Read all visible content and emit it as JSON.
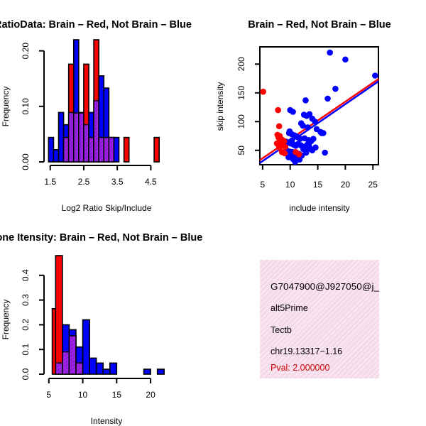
{
  "colors": {
    "brain": "#ff0000",
    "not_brain": "#0000ff",
    "overlap": "#a020f0",
    "info_bg": "#f6d8ea",
    "pval": "#cc0000"
  },
  "chart_data": [
    {
      "id": "ratio-hist",
      "type": "bar",
      "subtype": "overlaid-histogram",
      "title": "RatioData: Brain – Red, Not Brain – Blue",
      "xlabel": "Log2 Ratio Skip/Include",
      "ylabel": "Frequency",
      "xlim": [
        1.4,
        5.0
      ],
      "ylim": [
        0,
        0.22
      ],
      "xticks": [
        1.5,
        2.5,
        3.5,
        4.5
      ],
      "xtick_labels": [
        "1.5",
        "2.5",
        "3.5",
        "4.5"
      ],
      "yticks": [
        0.0,
        0.1,
        0.2
      ],
      "ytick_labels": [
        "0.00",
        "0.10",
        "0.20"
      ],
      "bin_edges": [
        1.45,
        1.6,
        1.75,
        1.9,
        2.05,
        2.2,
        2.35,
        2.5,
        2.65,
        2.8,
        2.95,
        3.1,
        3.25,
        3.4,
        3.55,
        3.7,
        3.85,
        4.0,
        4.15,
        4.3,
        4.45,
        4.6,
        4.75,
        4.9
      ],
      "series": [
        {
          "name": "Not Brain",
          "color": "blue",
          "values": [
            0.044,
            0.022,
            0.089,
            0.067,
            0.089,
            0.22,
            0.089,
            0.067,
            0.089,
            0.11,
            0.155,
            0.133,
            0.044,
            0.044,
            0,
            0,
            0,
            0,
            0,
            0,
            0,
            0,
            0
          ]
        },
        {
          "name": "Brain",
          "color": "red",
          "values": [
            0,
            0,
            0,
            0.044,
            0.176,
            0.088,
            0.088,
            0.176,
            0.044,
            0.22,
            0.044,
            0.044,
            0.044,
            0,
            0,
            0.044,
            0,
            0,
            0,
            0,
            0,
            0.044,
            0
          ]
        }
      ]
    },
    {
      "id": "intensity-scatter",
      "type": "scatter",
      "title": "Brain – Red, Not Brain – Blue",
      "xlabel": "include intensity",
      "ylabel": "skip intensity",
      "xlim": [
        4.5,
        26
      ],
      "ylim": [
        25,
        230
      ],
      "xticks": [
        5,
        10,
        15,
        20,
        25
      ],
      "xtick_labels": [
        "5",
        "10",
        "15",
        "20",
        "25"
      ],
      "yticks": [
        50,
        100,
        150,
        200
      ],
      "ytick_labels": [
        "50",
        "100",
        "150",
        "200"
      ],
      "series": [
        {
          "name": "Not Brain",
          "color": "blue",
          "x": [
            17.2,
            20.0,
            25.4,
            18.2,
            16.8,
            12.8,
            10.0,
            10.5,
            12.5,
            13.0,
            13.5,
            14.0,
            14.5,
            12.0,
            12.3,
            13.2,
            14.8,
            16.0,
            15.5,
            15.7,
            9.8,
            10.3,
            10.8,
            11.2,
            11.5,
            11.8,
            12.6,
            13.3,
            13.8,
            14.2,
            9.3,
            9.6,
            10.1,
            10.6,
            11.0,
            11.4,
            11.9,
            12.2,
            12.7,
            13.1,
            13.6,
            14.0,
            14.6,
            16.3,
            9.4,
            9.9,
            10.4,
            11.1,
            11.6,
            10.2,
            10.7,
            11.3,
            12.1,
            12.9,
            9.7,
            10.5,
            13.4,
            10.9,
            12.4,
            11.7,
            9.9,
            10.3
          ],
          "y": [
            220,
            208,
            180,
            157,
            140,
            137,
            120,
            117,
            112,
            110,
            113,
            105,
            100,
            97,
            93,
            90,
            87,
            80,
            82,
            80,
            80,
            78,
            76,
            74,
            72,
            70,
            71,
            68,
            66,
            70,
            65,
            63,
            62,
            60,
            58,
            61,
            59,
            57,
            55,
            60,
            53,
            50,
            55,
            46,
            50,
            48,
            47,
            45,
            44,
            42,
            43,
            40,
            41,
            46,
            38,
            35,
            58,
            30,
            52,
            34,
            83,
            67
          ]
        },
        {
          "name": "Brain",
          "color": "red",
          "x": [
            5.1,
            7.8,
            8.0,
            7.7,
            8.1,
            7.9,
            8.3,
            8.6,
            8.9,
            8.2,
            7.6,
            8.4,
            8.7,
            9.1,
            8.0,
            8.5,
            9.0,
            11.0,
            11.6
          ],
          "y": [
            152,
            120,
            92,
            77,
            75,
            72,
            70,
            68,
            66,
            64,
            62,
            60,
            58,
            56,
            55,
            47,
            45,
            47,
            43
          ]
        }
      ],
      "fit_lines": [
        {
          "color": "red",
          "x": [
            4.5,
            26
          ],
          "y": [
            33,
            174
          ]
        },
        {
          "color": "blue",
          "x": [
            4.5,
            26
          ],
          "y": [
            28,
            170
          ]
        }
      ]
    },
    {
      "id": "intensity-hist",
      "type": "bar",
      "subtype": "overlaid-histogram",
      "title": "Exone Itensity: Brain – Red, Not Brain – Blue",
      "xlabel": "Intensity",
      "ylabel": "Frequency",
      "xlim": [
        4.5,
        22.5
      ],
      "ylim": [
        0,
        0.5
      ],
      "xticks": [
        5,
        10,
        15,
        20
      ],
      "xtick_labels": [
        "5",
        "10",
        "15",
        "20"
      ],
      "yticks": [
        0.0,
        0.1,
        0.2,
        0.3,
        0.4
      ],
      "ytick_labels": [
        "0.0",
        "0.1",
        "0.2",
        "0.3",
        "0.4"
      ],
      "bin_edges": [
        5.5,
        6,
        7,
        8,
        9,
        10,
        11,
        12,
        13,
        14,
        15,
        16,
        17,
        18,
        19,
        20,
        21,
        22
      ],
      "series": [
        {
          "name": "Not Brain",
          "color": "blue",
          "values": [
            0,
            0.045,
            0.2,
            0.18,
            0.11,
            0.22,
            0.065,
            0.045,
            0.02,
            0.045,
            0,
            0,
            0,
            0,
            0.02,
            0,
            0.02
          ]
        },
        {
          "name": "Brain",
          "color": "red",
          "values": [
            0.265,
            0.48,
            0.09,
            0.155,
            0.045,
            0,
            0,
            0,
            0,
            0,
            0,
            0,
            0,
            0,
            0,
            0,
            0
          ]
        }
      ]
    }
  ],
  "info_panel": {
    "lines": [
      "G7047900@J927050@j_",
      "alt5Prime",
      "Tectb",
      "chr19.13317−1.16"
    ],
    "pval": "Pval: 2.000000"
  }
}
